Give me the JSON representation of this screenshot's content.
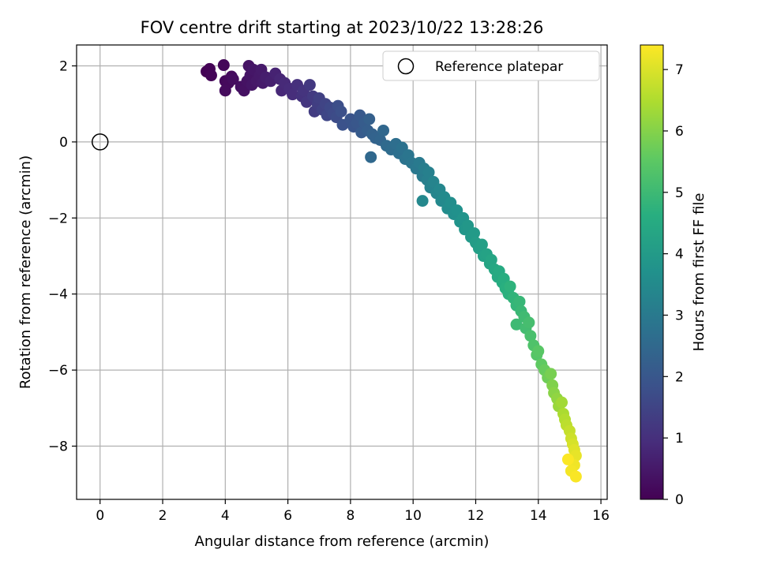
{
  "chart_data": {
    "type": "scatter",
    "title": "FOV centre drift starting at 2023/10/22 13:28:26",
    "xlabel": "Angular distance from reference (arcmin)",
    "ylabel": "Rotation from reference (arcmin)",
    "xlim": [
      -0.75,
      16.2
    ],
    "ylim": [
      -9.4,
      2.55
    ],
    "xticks": [
      0,
      2,
      4,
      6,
      8,
      10,
      12,
      14,
      16
    ],
    "yticks": [
      2,
      0,
      -2,
      -4,
      -6,
      -8
    ],
    "grid": true,
    "legend": {
      "position": "top-right",
      "entries": [
        "Reference platepar"
      ]
    },
    "reference_point": {
      "x": 0,
      "y": 0
    },
    "colorbar": {
      "label": "Hours from first FF file",
      "range": [
        0,
        7.4
      ],
      "ticks": [
        0,
        1,
        2,
        3,
        4,
        5,
        6,
        7
      ],
      "colormap": "viridis"
    },
    "series": [
      {
        "points": [
          [
            3.4,
            1.85,
            0.02
          ],
          [
            3.5,
            1.92,
            0.05
          ],
          [
            3.55,
            1.75,
            0.08
          ],
          [
            3.95,
            2.02,
            0.12
          ],
          [
            4.0,
            1.6,
            0.15
          ],
          [
            4.1,
            1.55,
            0.18
          ],
          [
            4.2,
            1.72,
            0.2
          ],
          [
            4.0,
            1.35,
            0.22
          ],
          [
            4.25,
            1.65,
            0.25
          ],
          [
            4.5,
            1.45,
            0.3
          ],
          [
            4.6,
            1.35,
            0.33
          ],
          [
            4.7,
            1.6,
            0.36
          ],
          [
            4.75,
            2.0,
            0.38
          ],
          [
            4.8,
            1.75,
            0.4
          ],
          [
            4.85,
            1.5,
            0.42
          ],
          [
            4.9,
            1.9,
            0.45
          ],
          [
            5.0,
            1.6,
            0.48
          ],
          [
            5.1,
            1.75,
            0.5
          ],
          [
            5.15,
            1.9,
            0.52
          ],
          [
            5.2,
            1.55,
            0.55
          ],
          [
            5.3,
            1.7,
            0.6
          ],
          [
            5.45,
            1.6,
            0.65
          ],
          [
            5.6,
            1.8,
            0.7
          ],
          [
            5.75,
            1.65,
            0.78
          ],
          [
            5.8,
            1.35,
            0.82
          ],
          [
            5.9,
            1.55,
            0.86
          ],
          [
            6.05,
            1.4,
            0.9
          ],
          [
            6.15,
            1.25,
            0.95
          ],
          [
            6.3,
            1.5,
            1.0
          ],
          [
            6.45,
            1.2,
            1.05
          ],
          [
            6.5,
            1.35,
            1.1
          ],
          [
            6.6,
            1.05,
            1.15
          ],
          [
            6.7,
            1.5,
            1.2
          ],
          [
            6.8,
            1.2,
            1.25
          ],
          [
            6.85,
            0.8,
            1.3
          ],
          [
            6.95,
            1.0,
            1.35
          ],
          [
            7.0,
            1.15,
            1.4
          ],
          [
            7.1,
            0.85,
            1.45
          ],
          [
            7.2,
            1.0,
            1.5
          ],
          [
            7.25,
            0.7,
            1.55
          ],
          [
            7.35,
            0.9,
            1.6
          ],
          [
            7.45,
            0.75,
            1.65
          ],
          [
            7.55,
            0.65,
            1.7
          ],
          [
            7.6,
            0.95,
            1.75
          ],
          [
            7.7,
            0.8,
            1.8
          ],
          [
            7.75,
            0.45,
            1.85
          ],
          [
            8.0,
            0.6,
            1.9
          ],
          [
            8.1,
            0.4,
            1.95
          ],
          [
            8.2,
            0.5,
            2.0
          ],
          [
            8.3,
            0.7,
            2.05
          ],
          [
            8.35,
            0.25,
            2.1
          ],
          [
            8.45,
            0.5,
            2.15
          ],
          [
            8.55,
            0.3,
            2.2
          ],
          [
            8.6,
            0.6,
            2.25
          ],
          [
            8.7,
            0.2,
            2.3
          ],
          [
            8.8,
            0.1,
            2.35
          ],
          [
            8.95,
            0.05,
            2.4
          ],
          [
            9.05,
            0.3,
            2.45
          ],
          [
            8.65,
            -0.4,
            2.5
          ],
          [
            9.15,
            -0.1,
            2.55
          ],
          [
            9.3,
            -0.2,
            2.6
          ],
          [
            9.45,
            -0.05,
            2.65
          ],
          [
            9.55,
            -0.3,
            2.7
          ],
          [
            9.65,
            -0.15,
            2.75
          ],
          [
            9.75,
            -0.45,
            2.8
          ],
          [
            9.85,
            -0.35,
            2.85
          ],
          [
            9.95,
            -0.55,
            2.9
          ],
          [
            10.1,
            -0.7,
            2.95
          ],
          [
            10.2,
            -0.55,
            3.0
          ],
          [
            10.3,
            -0.9,
            3.05
          ],
          [
            10.35,
            -0.7,
            3.1
          ],
          [
            10.45,
            -1.0,
            3.15
          ],
          [
            10.5,
            -0.8,
            3.2
          ],
          [
            10.55,
            -1.2,
            3.25
          ],
          [
            10.65,
            -1.05,
            3.3
          ],
          [
            10.75,
            -1.35,
            3.35
          ],
          [
            10.85,
            -1.25,
            3.4
          ],
          [
            10.3,
            -1.55,
            3.42
          ],
          [
            10.9,
            -1.55,
            3.45
          ],
          [
            11.0,
            -1.45,
            3.5
          ],
          [
            11.1,
            -1.75,
            3.55
          ],
          [
            11.2,
            -1.6,
            3.6
          ],
          [
            11.3,
            -1.9,
            3.65
          ],
          [
            11.4,
            -1.8,
            3.7
          ],
          [
            11.5,
            -2.1,
            3.75
          ],
          [
            11.6,
            -2.0,
            3.8
          ],
          [
            11.65,
            -2.3,
            3.85
          ],
          [
            11.75,
            -2.2,
            3.9
          ],
          [
            11.85,
            -2.5,
            3.95
          ],
          [
            11.95,
            -2.4,
            4.0
          ],
          [
            12.0,
            -2.65,
            4.05
          ],
          [
            12.1,
            -2.8,
            4.1
          ],
          [
            12.2,
            -2.7,
            4.15
          ],
          [
            12.25,
            -3.0,
            4.2
          ],
          [
            12.35,
            -2.95,
            4.25
          ],
          [
            12.45,
            -3.2,
            4.3
          ],
          [
            12.5,
            -3.1,
            4.35
          ],
          [
            12.6,
            -3.35,
            4.4
          ],
          [
            12.7,
            -3.55,
            4.45
          ],
          [
            12.75,
            -3.4,
            4.5
          ],
          [
            12.85,
            -3.7,
            4.55
          ],
          [
            12.9,
            -3.6,
            4.6
          ],
          [
            12.95,
            -3.85,
            4.65
          ],
          [
            13.05,
            -4.0,
            4.7
          ],
          [
            13.1,
            -3.8,
            4.75
          ],
          [
            13.2,
            -4.1,
            4.8
          ],
          [
            13.3,
            -4.3,
            4.85
          ],
          [
            13.4,
            -4.2,
            4.9
          ],
          [
            13.45,
            -4.45,
            4.95
          ],
          [
            13.3,
            -4.8,
            5.0
          ],
          [
            13.55,
            -4.6,
            5.05
          ],
          [
            13.6,
            -4.9,
            5.1
          ],
          [
            13.7,
            -4.75,
            5.15
          ],
          [
            13.75,
            -5.1,
            5.2
          ],
          [
            13.85,
            -5.35,
            5.3
          ],
          [
            13.95,
            -5.6,
            5.4
          ],
          [
            14.0,
            -5.5,
            5.45
          ],
          [
            14.1,
            -5.85,
            5.55
          ],
          [
            14.2,
            -6.0,
            5.65
          ],
          [
            14.3,
            -6.2,
            5.75
          ],
          [
            14.4,
            -6.1,
            5.85
          ],
          [
            14.45,
            -6.4,
            5.95
          ],
          [
            14.5,
            -6.6,
            6.05
          ],
          [
            14.6,
            -6.75,
            6.15
          ],
          [
            14.65,
            -6.95,
            6.25
          ],
          [
            14.75,
            -6.85,
            6.35
          ],
          [
            14.8,
            -7.15,
            6.45
          ],
          [
            14.85,
            -7.3,
            6.55
          ],
          [
            14.9,
            -7.45,
            6.65
          ],
          [
            15.0,
            -7.6,
            6.75
          ],
          [
            15.05,
            -7.8,
            6.85
          ],
          [
            15.1,
            -7.95,
            6.95
          ],
          [
            15.15,
            -8.1,
            7.05
          ],
          [
            15.2,
            -8.25,
            7.15
          ],
          [
            15.15,
            -8.5,
            7.25
          ],
          [
            15.05,
            -8.65,
            7.3
          ],
          [
            15.2,
            -8.8,
            7.35
          ],
          [
            14.95,
            -8.35,
            7.38
          ]
        ]
      }
    ]
  }
}
